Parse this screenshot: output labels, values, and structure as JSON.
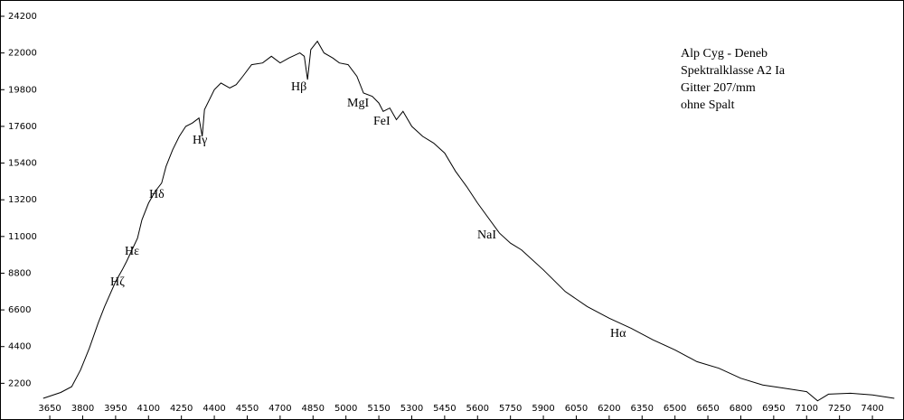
{
  "chart_data": {
    "type": "line",
    "info": [
      "Alp Cyg - Deneb",
      "Spektralklasse A2 Ia",
      "Gitter 207/mm",
      "ohne Spalt"
    ],
    "annotations": [
      "Hζ",
      "Hε",
      "Hδ",
      "Hγ",
      "Hβ",
      "MgI",
      "FeI",
      "NaI",
      "Hα"
    ],
    "x": [
      3620,
      3700,
      3750,
      3790,
      3830,
      3870,
      3900,
      3950,
      3980,
      4000,
      4050,
      4070,
      4100,
      4130,
      4160,
      4180,
      4210,
      4240,
      4270,
      4300,
      4330,
      4345,
      4355,
      4400,
      4430,
      4470,
      4500,
      4530,
      4570,
      4620,
      4660,
      4700,
      4740,
      4790,
      4810,
      4825,
      4840,
      4870,
      4900,
      4940,
      4970,
      5010,
      5050,
      5080,
      5120,
      5150,
      5170,
      5200,
      5230,
      5260,
      5300,
      5350,
      5400,
      5450,
      5500,
      5550,
      5600,
      5650,
      5700,
      5750,
      5800,
      5900,
      6000,
      6100,
      6200,
      6300,
      6400,
      6500,
      6600,
      6700,
      6800,
      6900,
      7000,
      7100,
      7150,
      7200,
      7300,
      7400,
      7500
    ],
    "series": [
      {
        "color": "#000000",
        "values": [
          1300,
          1650,
          2000,
          3000,
          4300,
          5800,
          6800,
          8300,
          9000,
          9500,
          10900,
          12000,
          13000,
          13700,
          14200,
          15200,
          16200,
          17000,
          17600,
          17800,
          18100,
          17000,
          18600,
          19800,
          20200,
          19900,
          20100,
          20600,
          21300,
          21400,
          21800,
          21400,
          21700,
          22000,
          21800,
          20400,
          22200,
          22700,
          22000,
          21700,
          21400,
          21300,
          20600,
          19600,
          19400,
          19000,
          18500,
          18700,
          18000,
          18500,
          17600,
          17000,
          16600,
          16000,
          14900,
          14000,
          13000,
          12100,
          11200,
          10600,
          10200,
          9000,
          7700,
          6800,
          6100,
          5500,
          4800,
          4200,
          3500,
          3100,
          2500,
          2100,
          1900,
          1700,
          1150,
          1550,
          1600,
          1500,
          1300
        ]
      }
    ],
    "xlim": [
      3423,
      7544
    ],
    "ylim": [
      0,
      25175
    ],
    "xticks": [
      3650,
      3800,
      3950,
      4100,
      4250,
      4400,
      4550,
      4700,
      4850,
      5000,
      5150,
      5300,
      5450,
      5600,
      5750,
      5900,
      6050,
      6200,
      6350,
      6500,
      6650,
      6800,
      6950,
      7100,
      7250,
      7400
    ],
    "yticks": [
      2200,
      4400,
      6600,
      8800,
      11000,
      13200,
      15400,
      17600,
      19800,
      22000,
      24200
    ]
  }
}
